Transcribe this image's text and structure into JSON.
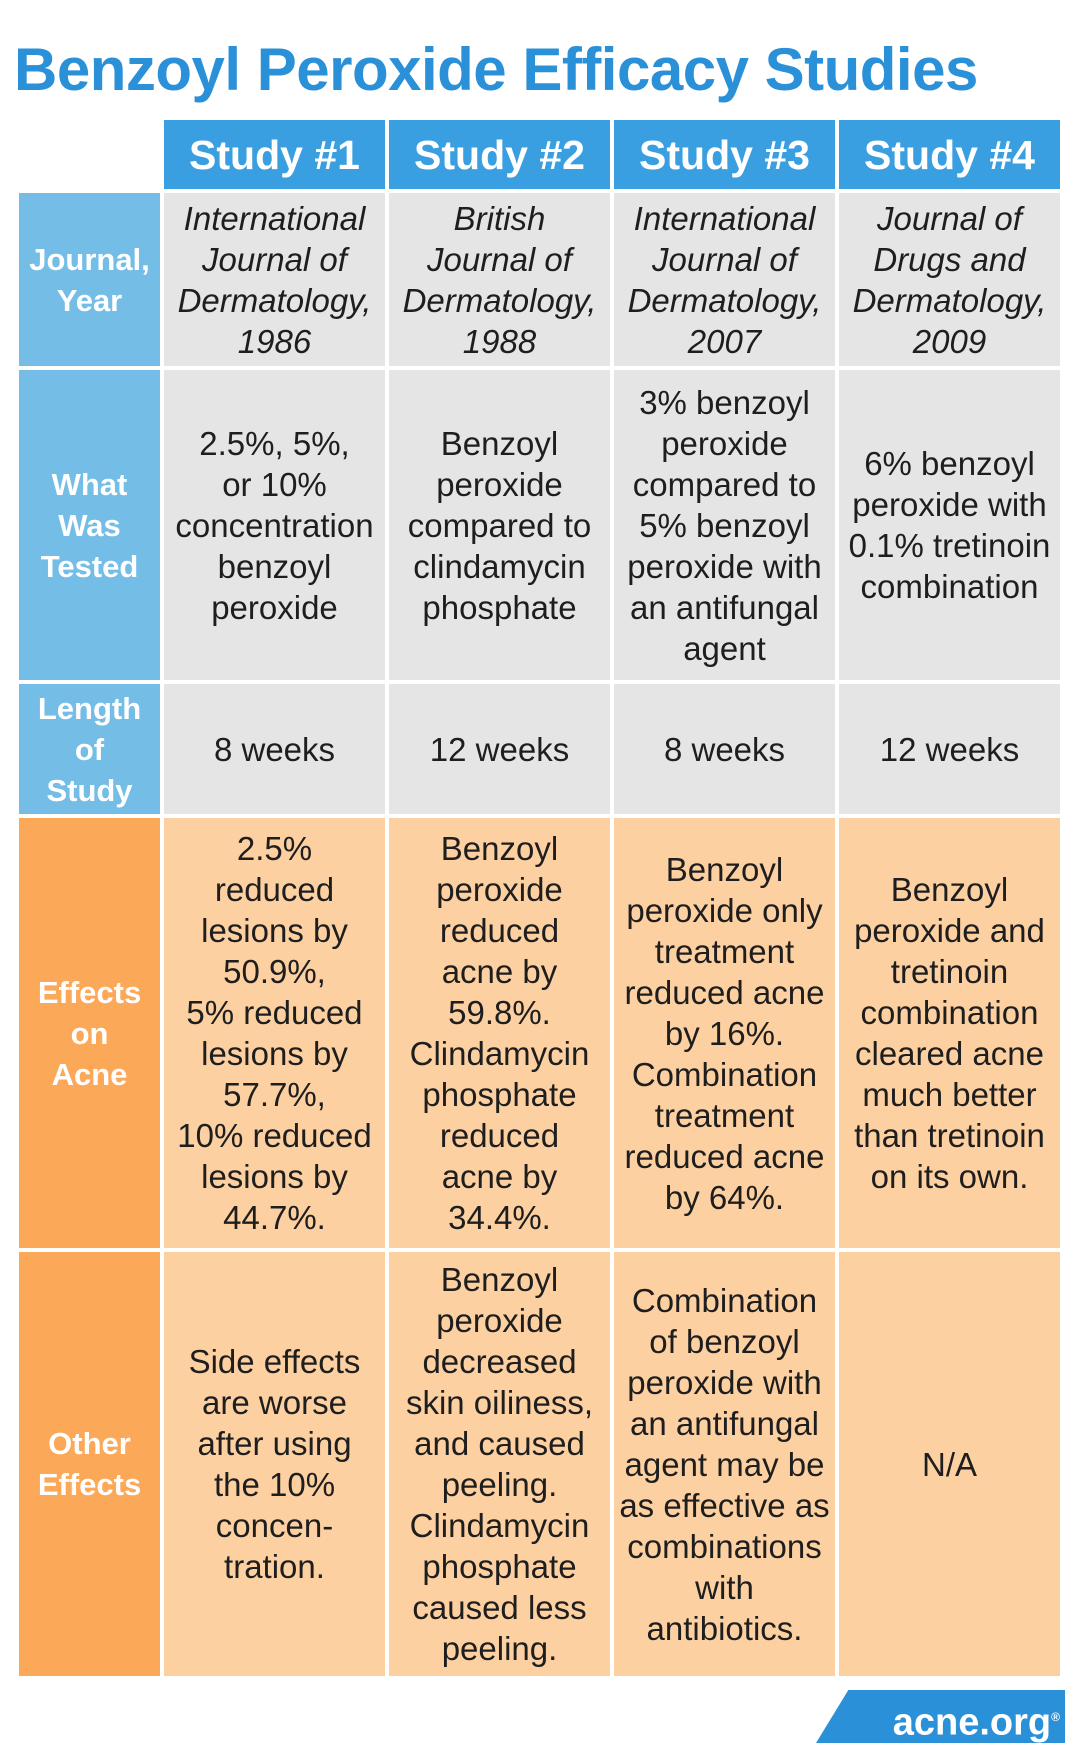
{
  "title": "Benzoyl Peroxide Efficacy Studies",
  "studies": [
    "Study #1",
    "Study #2",
    "Study #3",
    "Study #4"
  ],
  "rows": [
    {
      "label": "Journal,\nYear",
      "cells": [
        "International\nJournal of\nDermatology,\n1986",
        "British\nJournal of\nDermatology,\n1988",
        "International\nJournal of\nDermatology,\n2007",
        "Journal of\nDrugs and\nDermatology,\n2009"
      ]
    },
    {
      "label": "What\nWas\nTested",
      "cells": [
        "2.5%, 5%,\nor 10%\nconcentration\nbenzoyl\nperoxide",
        "Benzoyl\nperoxide\ncompared to\nclindamycin\nphosphate",
        "3% benzoyl\nperoxide\ncompared to\n5% benzoyl\nperoxide with\nan antifungal\nagent",
        "6% benzoyl\nperoxide with\n0.1% tretinoin\ncombination"
      ]
    },
    {
      "label": "Length\nof\nStudy",
      "cells": [
        "8 weeks",
        "12 weeks",
        "8 weeks",
        "12 weeks"
      ]
    },
    {
      "label": "Effects\non\nAcne",
      "cells": [
        "2.5%\nreduced\nlesions by\n50.9%,\n5% reduced\nlesions by\n57.7%,\n10% reduced\nlesions by\n44.7%.",
        "Benzoyl\nperoxide\nreduced\nacne by\n59.8%.\nClindamycin\nphosphate\nreduced\nacne by\n34.4%.",
        "Benzoyl\nperoxide only\ntreatment\nreduced acne\nby 16%.\nCombination\ntreatment\nreduced acne\nby 64%.",
        "Benzoyl\nperoxide and\ntretinoin\ncombination\ncleared acne\nmuch better\nthan tretinoin\non its own."
      ]
    },
    {
      "label": "Other\nEffects",
      "cells": [
        "Side effects\nare worse\nafter using\nthe 10%\nconcen-\ntration.",
        "Benzoyl\nperoxide\ndecreased\nskin oiliness,\nand caused\npeeling.\nClindamycin\nphosphate\ncaused less\npeeling.",
        "Combination\nof benzoyl\nperoxide with\nan antifungal\nagent may be\nas effective as\ncombinations\nwith\nantibiotics.",
        "N/A"
      ]
    }
  ],
  "logo": {
    "text": "acne.org",
    "mark": "®"
  },
  "colors": {
    "title": "#2a90d8",
    "header": "#3a9fe0",
    "label_blue": "#74bde6",
    "label_orange": "#fba858",
    "cell_gray": "#e5e5e5",
    "cell_peach": "#fdd0a1"
  }
}
